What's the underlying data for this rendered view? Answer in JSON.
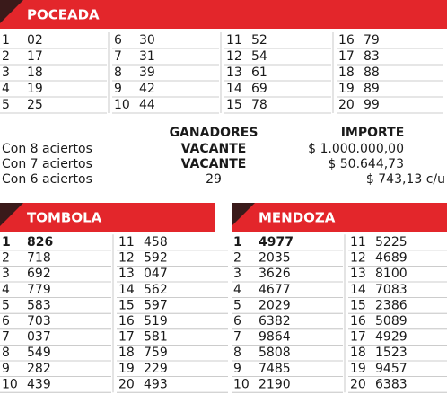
{
  "poceada": {
    "title": "POCEADA",
    "rows": [
      [
        "1",
        "02"
      ],
      [
        "2",
        "17"
      ],
      [
        "3",
        "18"
      ],
      [
        "4",
        "19"
      ],
      [
        "5",
        "25"
      ],
      [
        "6",
        "30"
      ],
      [
        "7",
        "31"
      ],
      [
        "8",
        "39"
      ],
      [
        "9",
        "42"
      ],
      [
        "10",
        "44"
      ],
      [
        "11",
        "52"
      ],
      [
        "12",
        "54"
      ],
      [
        "13",
        "61"
      ],
      [
        "14",
        "69"
      ],
      [
        "15",
        "78"
      ],
      [
        "16",
        "79"
      ],
      [
        "17",
        "83"
      ],
      [
        "18",
        "88"
      ],
      [
        "19",
        "89"
      ],
      [
        "20",
        "99"
      ]
    ]
  },
  "prizes": {
    "header": [
      "GANADORES",
      "IMPORTE"
    ],
    "rows": [
      [
        "Con 8 aciertos",
        "VACANTE",
        "$ 1.000.000,00"
      ],
      [
        "Con 7 aciertos",
        "VACANTE",
        "$ 50.644,73"
      ],
      [
        "Con 6 aciertos",
        "29",
        "$ 743,13 c/u"
      ]
    ]
  },
  "tombola": {
    "title": "TOMBOLA",
    "rows": [
      [
        "1",
        "826"
      ],
      [
        "2",
        "718"
      ],
      [
        "3",
        "692"
      ],
      [
        "4",
        "779"
      ],
      [
        "5",
        "583"
      ],
      [
        "6",
        "703"
      ],
      [
        "7",
        "037"
      ],
      [
        "8",
        "549"
      ],
      [
        "9",
        "282"
      ],
      [
        "10",
        "439"
      ],
      [
        "11",
        "458"
      ],
      [
        "12",
        "592"
      ],
      [
        "13",
        "047"
      ],
      [
        "14",
        "562"
      ],
      [
        "15",
        "597"
      ],
      [
        "16",
        "519"
      ],
      [
        "17",
        "581"
      ],
      [
        "18",
        "759"
      ],
      [
        "19",
        "229"
      ],
      [
        "20",
        "493"
      ]
    ]
  },
  "mendoza": {
    "title": "MENDOZA",
    "rows": [
      [
        "1",
        "4977"
      ],
      [
        "2",
        "2035"
      ],
      [
        "3",
        "3626"
      ],
      [
        "4",
        "4677"
      ],
      [
        "5",
        "2029"
      ],
      [
        "6",
        "6382"
      ],
      [
        "7",
        "9864"
      ],
      [
        "8",
        "5808"
      ],
      [
        "9",
        "7485"
      ],
      [
        "10",
        "2190"
      ],
      [
        "11",
        "5225"
      ],
      [
        "12",
        "4689"
      ],
      [
        "13",
        "8100"
      ],
      [
        "14",
        "7083"
      ],
      [
        "15",
        "2386"
      ],
      [
        "16",
        "5089"
      ],
      [
        "17",
        "4929"
      ],
      [
        "18",
        "1523"
      ],
      [
        "19",
        "9457"
      ],
      [
        "20",
        "6383"
      ]
    ]
  }
}
